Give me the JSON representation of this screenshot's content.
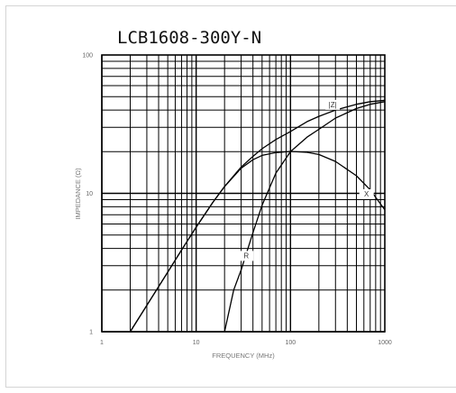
{
  "chart_data": {
    "type": "line",
    "title": "LCB1608-300Y-N",
    "xlabel": "FREQUENCY (MHz)",
    "ylabel": "IMPEDANCE (Ω)",
    "xscale": "log",
    "yscale": "log",
    "xlim": [
      1,
      1000
    ],
    "ylim": [
      1,
      100
    ],
    "grid": true,
    "x_ticks": [
      "1",
      "10",
      "100",
      "1000"
    ],
    "y_ticks": [
      "1",
      "10",
      "100"
    ],
    "series": [
      {
        "name": "|Z|",
        "label_at": [
          280,
          42
        ],
        "x": [
          2,
          3,
          5,
          7,
          10,
          15,
          20,
          30,
          40,
          50,
          70,
          100,
          150,
          200,
          300,
          500,
          700,
          1000
        ],
        "y": [
          1,
          1.55,
          2.7,
          3.9,
          5.7,
          8.6,
          11.2,
          15.5,
          18.5,
          21,
          24.5,
          28,
          33,
          36,
          40,
          44,
          46,
          47
        ]
      },
      {
        "name": "R",
        "label_at": [
          34,
          3.4
        ],
        "x": [
          20,
          25,
          30,
          40,
          50,
          70,
          100,
          150,
          200,
          300,
          500,
          700,
          1000
        ],
        "y": [
          1,
          2,
          2.8,
          5.2,
          8.2,
          14,
          20,
          25.5,
          29,
          35,
          41,
          44,
          46
        ]
      },
      {
        "name": "X",
        "label_at": [
          640,
          9.5
        ],
        "x": [
          2,
          3,
          5,
          7,
          10,
          15,
          20,
          30,
          40,
          50,
          70,
          100,
          150,
          200,
          300,
          500,
          700,
          1000
        ],
        "y": [
          1,
          1.55,
          2.7,
          3.9,
          5.7,
          8.6,
          11.2,
          15.2,
          17.5,
          18.8,
          19.7,
          20.1,
          19.8,
          19.1,
          17,
          13.4,
          10.6,
          7.6
        ]
      }
    ]
  }
}
